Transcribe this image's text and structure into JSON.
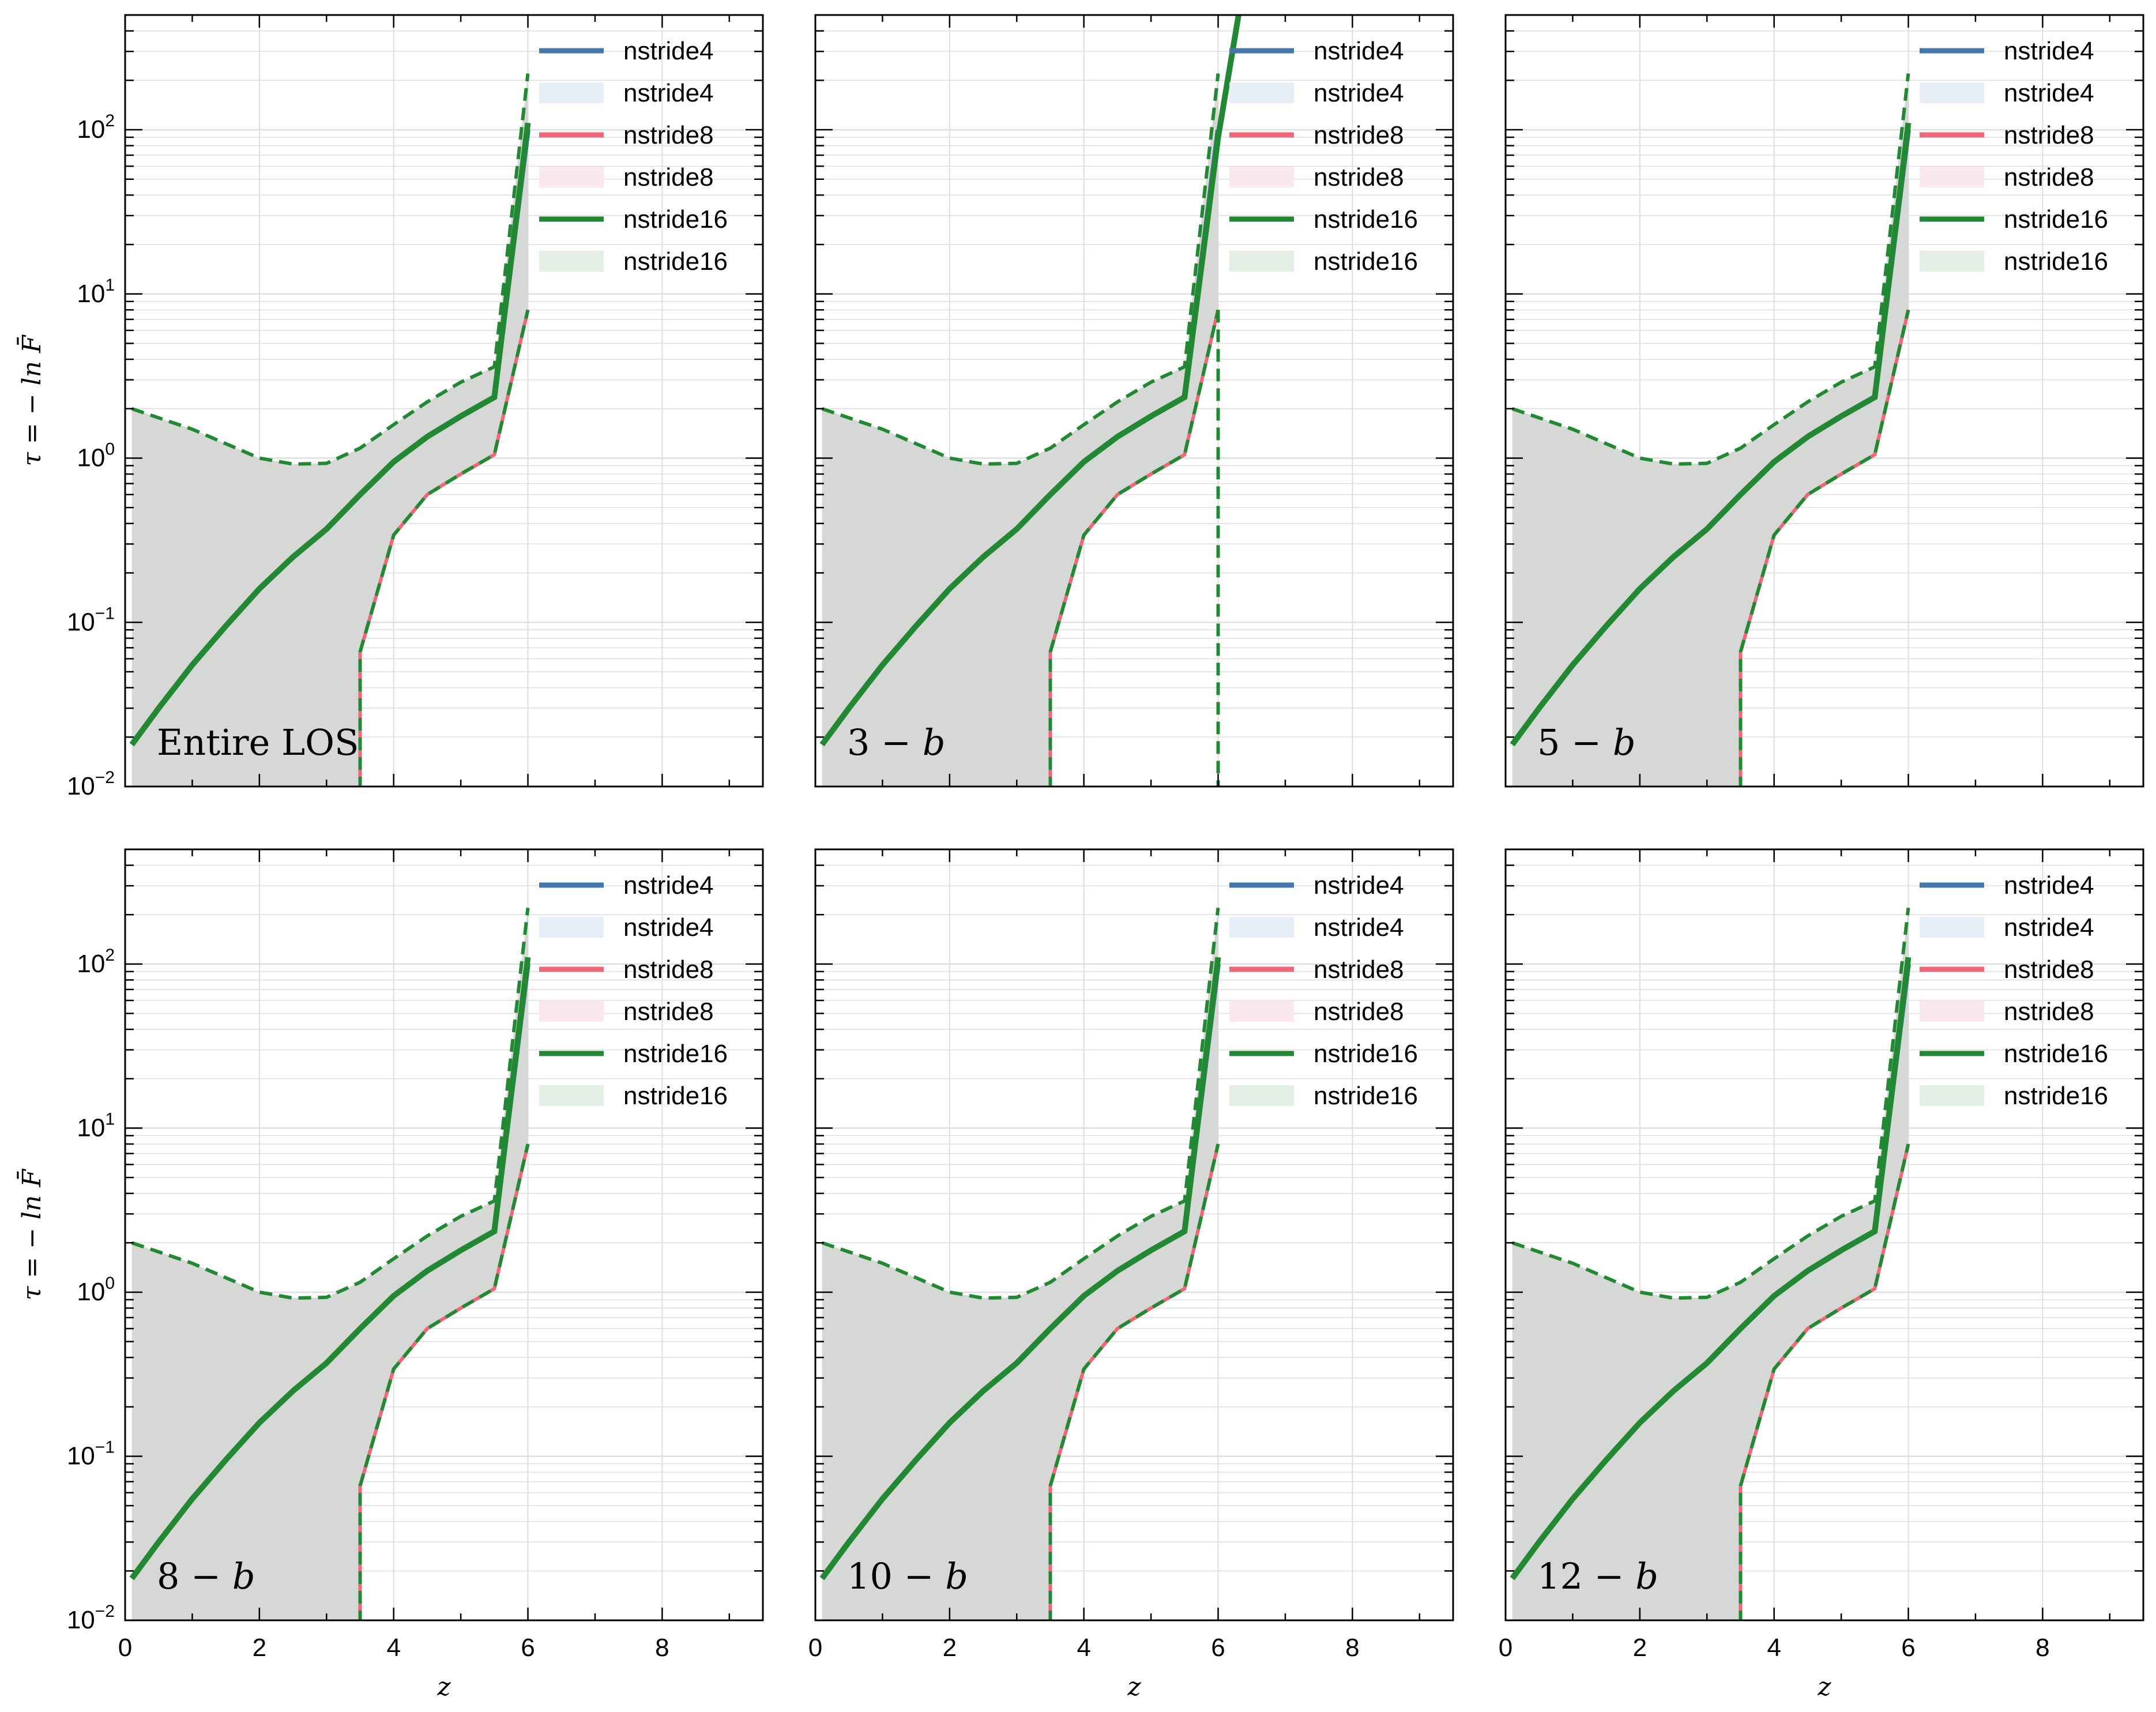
{
  "chart_data": {
    "type": "line",
    "layout": "2 rows x 3 columns, shared axes",
    "xlabel": "z",
    "ylabel": "τ = − ln F̄",
    "xlim": [
      0,
      9.5
    ],
    "ylim": [
      0.01,
      500
    ],
    "yscale": "log",
    "xticks": [
      0,
      2,
      4,
      6,
      8
    ],
    "yticks": [
      {
        "value": 0.01,
        "base": "10",
        "exp": "−2"
      },
      {
        "value": 0.1,
        "base": "10",
        "exp": "−1"
      },
      {
        "value": 1,
        "base": "10",
        "exp": "0"
      },
      {
        "value": 10,
        "base": "10",
        "exp": "1"
      },
      {
        "value": 100,
        "base": "10",
        "exp": "2"
      }
    ],
    "grid": true,
    "legend_placement": "top-right",
    "legend": [
      {
        "label": "nstride4",
        "kind": "line",
        "color": "#4477aa"
      },
      {
        "label": "nstride4",
        "kind": "band",
        "color": "#e8eef7"
      },
      {
        "label": "nstride8",
        "kind": "line",
        "color": "#ee6677"
      },
      {
        "label": "nstride8",
        "kind": "band",
        "color": "#fbe8ec"
      },
      {
        "label": "nstride16",
        "kind": "line",
        "color": "#228833"
      },
      {
        "label": "nstride16",
        "kind": "band",
        "color": "#e3eee5"
      }
    ],
    "colors": {
      "nstride4": "#4477aa",
      "nstride8": "#ee6677",
      "nstride16": "#228833",
      "band_overlap": "#d5d8d4"
    },
    "panels": [
      {
        "label_pre": "Entire LOS",
        "label_it": "",
        "label_post": "",
        "variant": "normal"
      },
      {
        "label_pre": "3 − ",
        "label_it": "b",
        "label_post": "",
        "variant": "drop"
      },
      {
        "label_pre": "5 − ",
        "label_it": "b",
        "label_post": "",
        "variant": "normal"
      },
      {
        "label_pre": "8 − ",
        "label_it": "b",
        "label_post": "",
        "variant": "normal"
      },
      {
        "label_pre": "10 − ",
        "label_it": "b",
        "label_post": "",
        "variant": "normal"
      },
      {
        "label_pre": "12 − ",
        "label_it": "b",
        "label_post": "",
        "variant": "normal"
      }
    ],
    "series": [
      {
        "name": "nstride16",
        "role": "median",
        "x": [
          0.1,
          0.5,
          1.0,
          1.5,
          2.0,
          2.5,
          3.0,
          3.5,
          4.0,
          4.5,
          5.0,
          5.5,
          6.0
        ],
        "y": [
          0.018,
          0.03,
          0.055,
          0.095,
          0.16,
          0.25,
          0.37,
          0.6,
          0.95,
          1.35,
          1.8,
          2.35,
          110
        ]
      },
      {
        "name": "nstride16",
        "role": "upper",
        "x": [
          0.1,
          1.0,
          2.0,
          2.5,
          3.0,
          3.5,
          4.0,
          4.5,
          5.0,
          5.5,
          6.0
        ],
        "y": [
          2.0,
          1.5,
          1.0,
          0.92,
          0.93,
          1.15,
          1.6,
          2.2,
          2.9,
          3.6,
          220
        ]
      },
      {
        "name": "nstride16",
        "role": "lower",
        "x": [
          3.5,
          4.0,
          4.5,
          5.0,
          5.5,
          6.0
        ],
        "y": [
          0.066,
          0.34,
          0.6,
          0.8,
          1.05,
          8.0
        ]
      }
    ]
  }
}
